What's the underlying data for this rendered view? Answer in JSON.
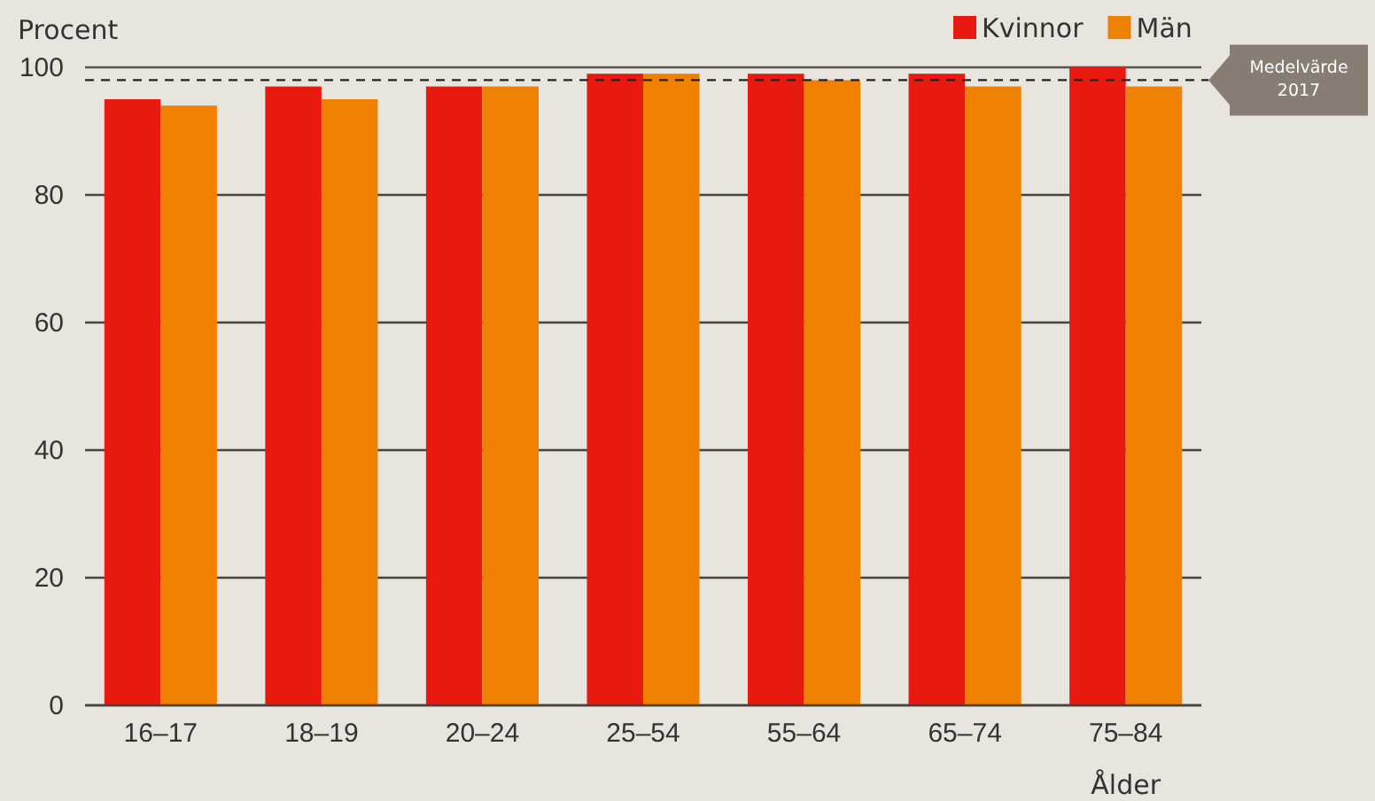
{
  "chart_data": {
    "type": "bar",
    "ylabel": "Procent",
    "xlabel": "Ålder",
    "categories": [
      "16–17",
      "18–19",
      "20–24",
      "25–54",
      "55–64",
      "65–74",
      "75–84"
    ],
    "series": [
      {
        "name": "Kvinnor",
        "color": "#e8190f",
        "values": [
          95,
          97,
          97,
          99,
          99,
          99,
          100
        ]
      },
      {
        "name": "Män",
        "color": "#f08000",
        "values": [
          94,
          95,
          97,
          99,
          98,
          97,
          97
        ]
      }
    ],
    "ylim": [
      0,
      100
    ],
    "yticks": [
      0,
      20,
      40,
      60,
      80,
      100
    ],
    "grid": "y",
    "legend": "top right",
    "ref_lines": [
      {
        "axis": "y",
        "value": 98,
        "label": "Medelvärde 2017",
        "line_style": "dashed",
        "color": "#222222"
      }
    ]
  }
}
